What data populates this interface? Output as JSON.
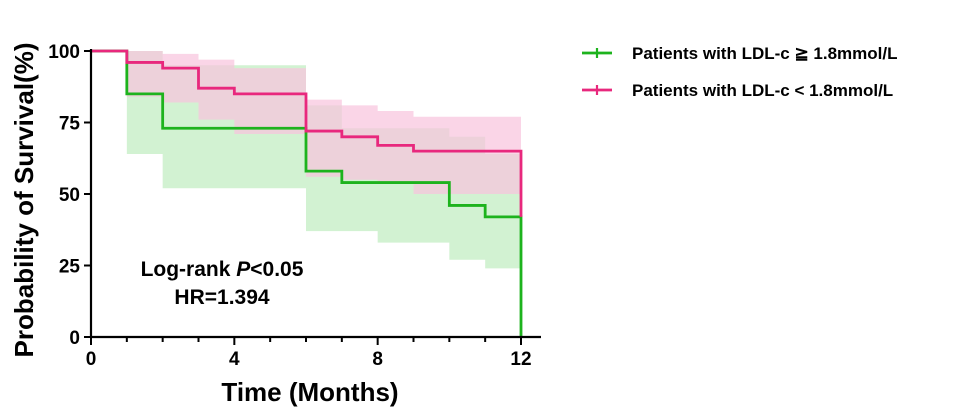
{
  "chart_data": {
    "type": "line",
    "subtype": "kaplan-meier survival curve (step) with confidence bands",
    "title": "",
    "xlabel": "Time (Months)",
    "ylabel": "Probability of Survival(%)",
    "xlim": [
      0,
      12
    ],
    "ylim": [
      0,
      100
    ],
    "x_ticks": [
      0,
      4,
      8,
      12
    ],
    "y_ticks": [
      0,
      25,
      50,
      75,
      100
    ],
    "grid": false,
    "legend_position": "top-right, outside plot",
    "series": [
      {
        "name": "Patients with LDL-c ≧ 1.8mmol/L",
        "color": "#1db31d",
        "band_color": "#bfedbf",
        "x": [
          0,
          1,
          2,
          6,
          7,
          8,
          10,
          11,
          12,
          12
        ],
        "y": [
          100,
          85,
          73,
          58,
          54,
          54,
          46,
          42,
          42,
          0
        ],
        "ci_upper": [
          100,
          100,
          95,
          81,
          73,
          73,
          70,
          64,
          60,
          60
        ],
        "ci_lower": [
          100,
          64,
          52,
          37,
          37,
          33,
          27,
          24,
          24,
          24
        ]
      },
      {
        "name": "Patients with LDL-c <  1.8mmol/L",
        "color": "#e8287d",
        "band_color": "#f8c3dd",
        "x": [
          0,
          1,
          2,
          3,
          4,
          6,
          7,
          8,
          9,
          12,
          12
        ],
        "y": [
          100,
          96,
          94,
          87,
          85,
          72,
          70,
          67,
          65,
          65,
          42
        ],
        "ci_upper": [
          100,
          100,
          99,
          97,
          94,
          83,
          81,
          79,
          77,
          77,
          77
        ],
        "ci_lower": [
          100,
          84,
          82,
          76,
          71,
          56,
          55,
          54,
          50,
          50,
          50
        ]
      }
    ],
    "annotations": {
      "test_prefix": "Log-rank ",
      "test_p": "P",
      "test_value": "<0.05",
      "hr": "HR=1.394"
    }
  }
}
